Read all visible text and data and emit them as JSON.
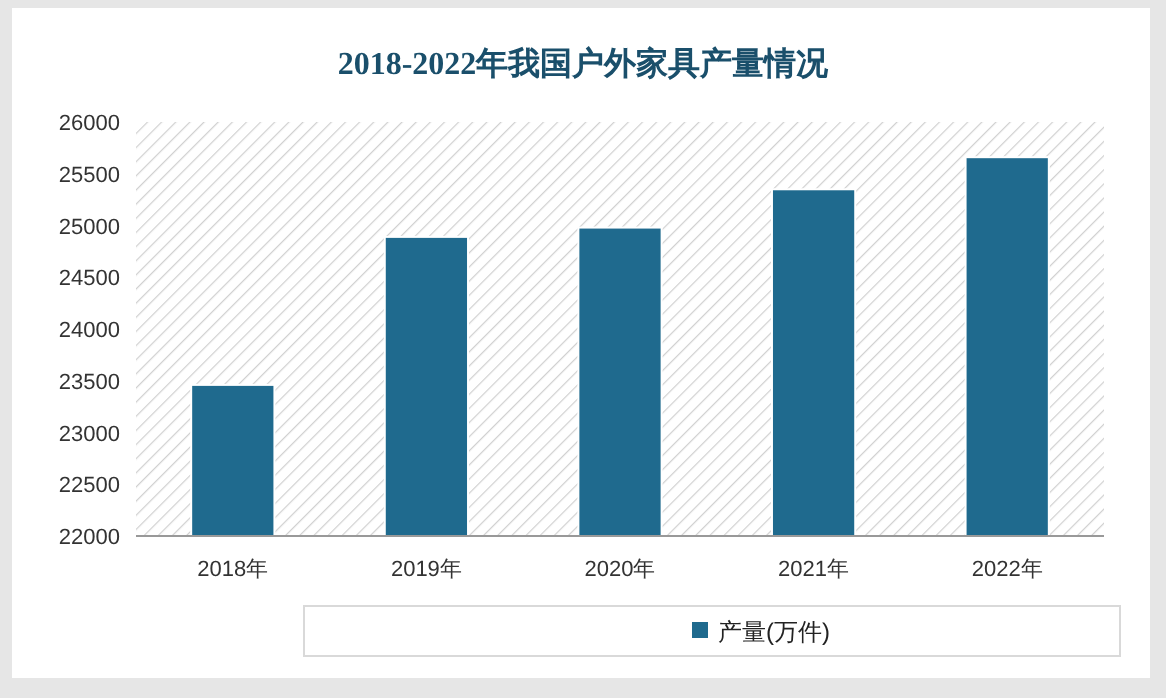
{
  "chart_data": {
    "type": "bar",
    "title": "2018-2022年我国户外家具产量情况",
    "categories": [
      "2018年",
      "2019年",
      "2020年",
      "2021年",
      "2022年"
    ],
    "series": [
      {
        "name": "产量(万件)",
        "color": "#1f6a8e",
        "values": [
          23460,
          24890,
          24980,
          25350,
          25660
        ]
      }
    ],
    "ylim": [
      22000,
      26000
    ],
    "yticks": [
      22000,
      22500,
      23000,
      23500,
      24000,
      24500,
      25000,
      25500,
      26000
    ],
    "grid": false,
    "legend": "bottom"
  }
}
